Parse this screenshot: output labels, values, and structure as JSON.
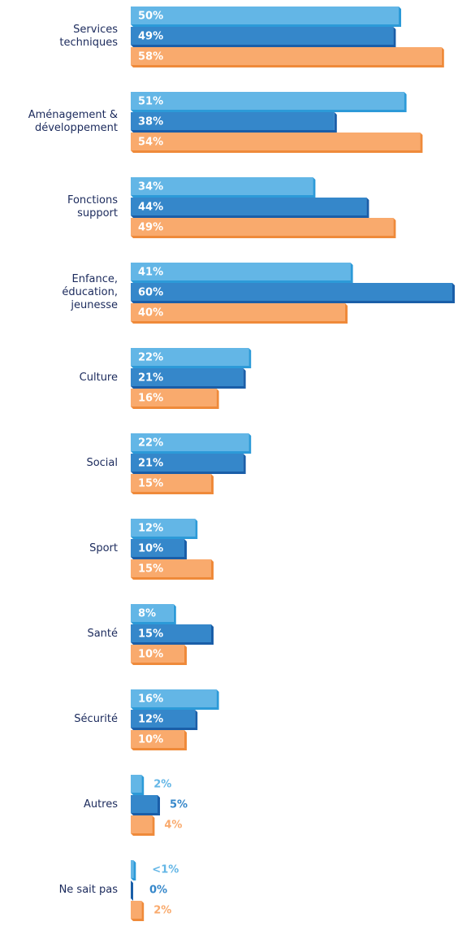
{
  "chart_data": {
    "type": "bar",
    "orientation": "horizontal",
    "categories": [
      [
        "Services",
        "techniques"
      ],
      [
        "Aménagement &",
        "développement"
      ],
      [
        "Fonctions",
        "support"
      ],
      [
        "Enfance,",
        "éducation,",
        "jeunesse"
      ],
      [
        "Culture"
      ],
      [
        "Social"
      ],
      [
        "Sport"
      ],
      [
        "Santé"
      ],
      [
        "Sécurité"
      ],
      [
        "Autres"
      ],
      [
        "Ne sait pas"
      ]
    ],
    "series": [
      {
        "color": "#63b6e6",
        "shade": "#2c9ad8",
        "values": [
          50,
          51,
          34,
          41,
          22,
          22,
          12,
          8,
          16,
          2,
          0.5
        ],
        "value_labels": [
          "50%",
          "51%",
          "34%",
          "41%",
          "22%",
          "22%",
          "12%",
          "8%",
          "16%",
          "2%",
          "<1%"
        ]
      },
      {
        "color": "#3587ca",
        "shade": "#1a5ea8",
        "values": [
          49,
          38,
          44,
          60,
          21,
          21,
          10,
          15,
          12,
          5,
          0
        ],
        "value_labels": [
          "49%",
          "38%",
          "44%",
          "60%",
          "21%",
          "21%",
          "10%",
          "15%",
          "12%",
          "5%",
          "0%"
        ]
      },
      {
        "color": "#f9aa6d",
        "shade": "#ef8a3a",
        "values": [
          58,
          54,
          49,
          40,
          16,
          15,
          15,
          10,
          10,
          4,
          2
        ],
        "value_labels": [
          "58%",
          "54%",
          "49%",
          "40%",
          "16%",
          "15%",
          "15%",
          "10%",
          "10%",
          "4%",
          "2%"
        ]
      }
    ]
  }
}
